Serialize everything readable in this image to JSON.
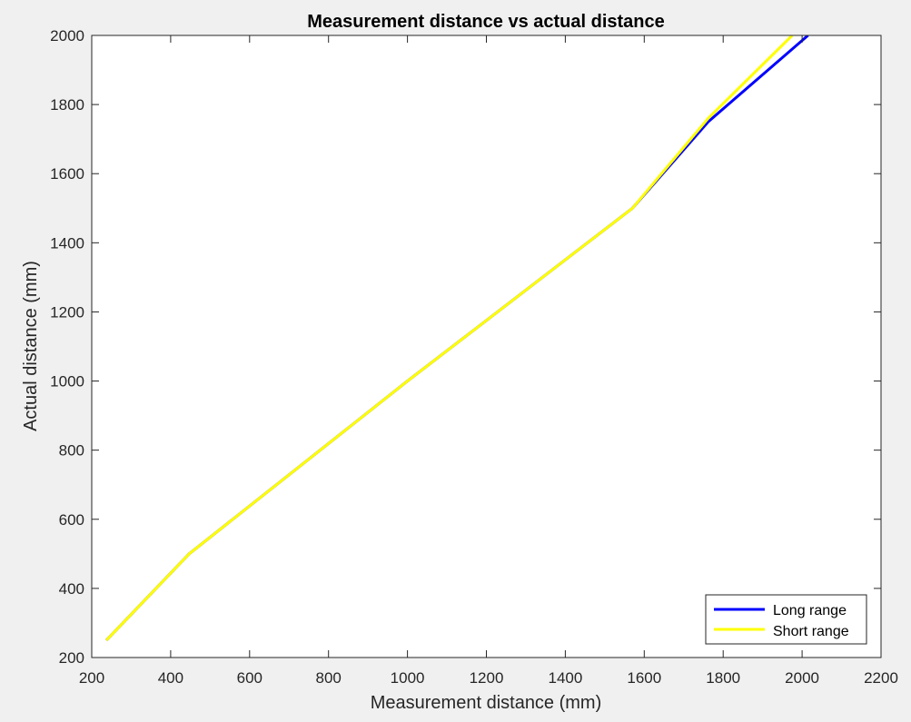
{
  "chart_data": {
    "type": "line",
    "title": "Measurement distance vs actual distance",
    "xlabel": "Measurement distance (mm)",
    "ylabel": "Actual distance (mm)",
    "xlim": [
      200,
      2200
    ],
    "ylim": [
      200,
      2000
    ],
    "xticks": [
      200,
      400,
      600,
      800,
      1000,
      1200,
      1400,
      1600,
      1800,
      2000,
      2200
    ],
    "yticks": [
      200,
      400,
      600,
      800,
      1000,
      1200,
      1400,
      1600,
      1800,
      2000
    ],
    "grid": false,
    "legend_position": "bottom-right",
    "series": [
      {
        "name": "Long range",
        "color": "#0000ff",
        "x": [
          237,
          447,
          1000,
          1570,
          1762,
          2015
        ],
        "y": [
          250,
          500,
          1000,
          1500,
          1750,
          2000
        ]
      },
      {
        "name": "Short range",
        "color": "#ffff00",
        "x": [
          237,
          447,
          1000,
          1570,
          1762,
          1975
        ],
        "y": [
          250,
          500,
          1000,
          1500,
          1760,
          2000
        ]
      }
    ]
  }
}
